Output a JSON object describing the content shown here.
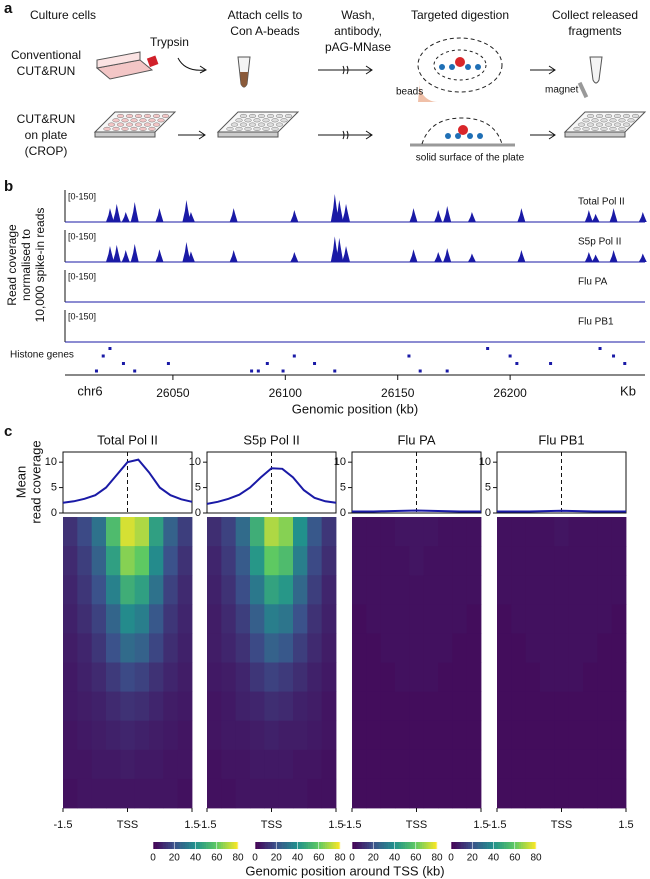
{
  "panel_a": {
    "label": "a",
    "steps": [
      [
        "Culture cells"
      ],
      [
        "Attach cells to",
        "Con A-beads"
      ],
      [
        "Wash,",
        "antibody,",
        "pAG-MNase"
      ],
      [
        "Targeted digestion"
      ],
      [
        "Collect released",
        "fragments"
      ]
    ],
    "rows": [
      [
        "Conventional",
        "CUT&RUN"
      ],
      [
        "CUT&RUN",
        "on plate",
        "(CROP)"
      ]
    ],
    "annotations": {
      "trypsin": "Trypsin",
      "beads": "beads",
      "magnet": "magnet",
      "surface": "solid surface of the plate"
    }
  },
  "panel_b": {
    "label": "b",
    "y_label": [
      "Read coverage",
      "normalised to",
      "10,000 spike-in reads"
    ],
    "xlim": [
      26002,
      26260
    ],
    "ylim": [
      0,
      150
    ],
    "track_range": "[0-150]",
    "tracks": [
      {
        "name": "Total Pol II",
        "color": "#1a1aa6",
        "peaks": [
          [
            26022,
            65
          ],
          [
            26025,
            85
          ],
          [
            26029,
            47
          ],
          [
            26033,
            94
          ],
          [
            26044,
            65
          ],
          [
            26056,
            103
          ],
          [
            26058,
            47
          ],
          [
            26077,
            65
          ],
          [
            26104,
            56
          ],
          [
            26122,
            131
          ],
          [
            26124,
            103
          ],
          [
            26127,
            85
          ],
          [
            26157,
            65
          ],
          [
            26168,
            56
          ],
          [
            26172,
            75
          ],
          [
            26183,
            47
          ],
          [
            26205,
            65
          ],
          [
            26235,
            56
          ],
          [
            26238,
            38
          ],
          [
            26246,
            65
          ],
          [
            26259,
            47
          ]
        ]
      },
      {
        "name": "S5p Pol II",
        "color": "#1a1aa6",
        "peaks": [
          [
            26022,
            75
          ],
          [
            26025,
            80
          ],
          [
            26029,
            56
          ],
          [
            26033,
            85
          ],
          [
            26044,
            60
          ],
          [
            26056,
            94
          ],
          [
            26058,
            50
          ],
          [
            26077,
            56
          ],
          [
            26104,
            47
          ],
          [
            26122,
            120
          ],
          [
            26124,
            113
          ],
          [
            26127,
            75
          ],
          [
            26157,
            60
          ],
          [
            26168,
            47
          ],
          [
            26172,
            65
          ],
          [
            26183,
            40
          ],
          [
            26205,
            56
          ],
          [
            26235,
            47
          ],
          [
            26238,
            35
          ],
          [
            26246,
            56
          ],
          [
            26259,
            40
          ]
        ]
      },
      {
        "name": "Flu PA",
        "color": "#1a1aa6",
        "peaks": []
      },
      {
        "name": "Flu PB1",
        "color": "#1a1aa6",
        "peaks": []
      }
    ],
    "histone_label": "Histone genes",
    "histone_genes": [
      [
        26016,
        3
      ],
      [
        26019,
        1
      ],
      [
        26022,
        0
      ],
      [
        26028,
        2
      ],
      [
        26033,
        3
      ],
      [
        26048,
        2
      ],
      [
        26085,
        3
      ],
      [
        26088,
        3
      ],
      [
        26092,
        2
      ],
      [
        26099,
        3
      ],
      [
        26104,
        1
      ],
      [
        26113,
        2
      ],
      [
        26122,
        3
      ],
      [
        26155,
        1
      ],
      [
        26160,
        3
      ],
      [
        26172,
        3
      ],
      [
        26190,
        0
      ],
      [
        26200,
        1
      ],
      [
        26203,
        2
      ],
      [
        26218,
        2
      ],
      [
        26240,
        0
      ],
      [
        26246,
        1
      ],
      [
        26251,
        2
      ]
    ],
    "chromosome": "chr6",
    "unit": "Kb",
    "xticks": [
      26050,
      26100,
      26150,
      26200
    ],
    "x_label": "Genomic position (kb)"
  },
  "panel_c": {
    "label": "c",
    "y_label": [
      "Mean",
      "read coverage"
    ],
    "x_label": "Genomic position around TSS (kb)",
    "xlim": [
      -1.5,
      1.5
    ],
    "xticks": [
      -1.5,
      {
        "value": 0,
        "label": "TSS"
      },
      1.5
    ],
    "ylim": [
      0,
      12
    ],
    "yticks": [
      0,
      5,
      10
    ],
    "profile_x": [
      -1.5,
      -1.25,
      -1,
      -0.75,
      -0.5,
      -0.25,
      0,
      0.25,
      0.5,
      0.75,
      1,
      1.25,
      1.5
    ],
    "colormap": "viridis",
    "clim": [
      0,
      80
    ],
    "cticks": [
      0,
      20,
      40,
      60,
      80
    ],
    "line_color": "#1a1aa6",
    "panels": [
      {
        "title": "Total Pol II",
        "profile": [
          2,
          2.3,
          2.8,
          3.5,
          5,
          7.5,
          10,
          10.5,
          8,
          5,
          3.5,
          2.7,
          2.2
        ],
        "heatmap": [
          [
            12,
            18,
            30,
            55,
            75,
            70,
            45,
            25,
            15
          ],
          [
            10,
            15,
            25,
            45,
            65,
            60,
            38,
            20,
            12
          ],
          [
            9,
            13,
            20,
            35,
            50,
            45,
            30,
            16,
            10
          ],
          [
            8,
            11,
            16,
            26,
            38,
            34,
            22,
            13,
            9
          ],
          [
            7,
            9,
            13,
            20,
            28,
            25,
            17,
            11,
            8
          ],
          [
            6,
            8,
            10,
            14,
            18,
            16,
            12,
            9,
            7
          ],
          [
            6,
            7,
            8,
            10,
            12,
            11,
            9,
            7,
            6
          ],
          [
            5,
            6,
            7,
            8,
            9,
            8,
            7,
            6,
            5
          ],
          [
            5,
            5,
            6,
            6,
            7,
            6,
            6,
            5,
            5
          ],
          [
            4,
            5,
            5,
            5,
            5,
            5,
            5,
            5,
            4
          ]
        ]
      },
      {
        "title": "S5p Pol II",
        "profile": [
          1.8,
          2.2,
          2.8,
          3.6,
          5,
          7,
          8.8,
          8.7,
          7,
          4.5,
          3,
          2.3,
          2
        ],
        "heatmap": [
          [
            11,
            16,
            28,
            50,
            70,
            65,
            40,
            22,
            13
          ],
          [
            9,
            14,
            23,
            42,
            60,
            55,
            34,
            18,
            11
          ],
          [
            8,
            12,
            19,
            32,
            46,
            42,
            27,
            15,
            9
          ],
          [
            7,
            10,
            15,
            24,
            34,
            31,
            20,
            12,
            8
          ],
          [
            7,
            9,
            12,
            18,
            25,
            22,
            15,
            10,
            7
          ],
          [
            6,
            7,
            9,
            13,
            16,
            14,
            11,
            8,
            6
          ],
          [
            5,
            6,
            8,
            9,
            11,
            10,
            8,
            7,
            5
          ],
          [
            5,
            6,
            6,
            7,
            8,
            7,
            7,
            6,
            5
          ],
          [
            4,
            5,
            5,
            6,
            6,
            6,
            5,
            5,
            4
          ],
          [
            4,
            4,
            5,
            5,
            5,
            5,
            5,
            4,
            4
          ]
        ]
      },
      {
        "title": "Flu PA",
        "profile": [
          0.3,
          0.3,
          0.3,
          0.35,
          0.4,
          0.45,
          0.5,
          0.45,
          0.4,
          0.35,
          0.3,
          0.3,
          0.3
        ],
        "heatmap": [
          [
            4,
            4,
            4,
            5,
            5,
            5,
            4,
            4,
            4
          ],
          [
            4,
            4,
            4,
            4,
            5,
            4,
            4,
            4,
            4
          ],
          [
            4,
            4,
            4,
            4,
            4,
            4,
            4,
            4,
            4
          ],
          [
            3,
            4,
            4,
            4,
            4,
            4,
            4,
            4,
            3
          ],
          [
            3,
            3,
            4,
            4,
            4,
            4,
            4,
            3,
            3
          ],
          [
            3,
            3,
            3,
            4,
            4,
            4,
            3,
            3,
            3
          ],
          [
            3,
            3,
            3,
            3,
            3,
            3,
            3,
            3,
            3
          ],
          [
            3,
            3,
            3,
            3,
            3,
            3,
            3,
            3,
            3
          ],
          [
            3,
            3,
            3,
            3,
            3,
            3,
            3,
            3,
            3
          ],
          [
            3,
            3,
            3,
            3,
            3,
            3,
            3,
            3,
            3
          ]
        ]
      },
      {
        "title": "Flu PB1",
        "profile": [
          0.3,
          0.3,
          0.3,
          0.3,
          0.35,
          0.4,
          0.45,
          0.4,
          0.35,
          0.3,
          0.3,
          0.3,
          0.3
        ],
        "heatmap": [
          [
            4,
            4,
            4,
            4,
            5,
            4,
            4,
            4,
            4
          ],
          [
            4,
            4,
            4,
            4,
            4,
            4,
            4,
            4,
            4
          ],
          [
            4,
            4,
            4,
            4,
            4,
            4,
            4,
            4,
            4
          ],
          [
            3,
            4,
            4,
            4,
            4,
            4,
            4,
            4,
            3
          ],
          [
            3,
            3,
            4,
            4,
            4,
            4,
            4,
            3,
            3
          ],
          [
            3,
            3,
            3,
            4,
            4,
            4,
            3,
            3,
            3
          ],
          [
            3,
            3,
            3,
            3,
            3,
            3,
            3,
            3,
            3
          ],
          [
            3,
            3,
            3,
            3,
            3,
            3,
            3,
            3,
            3
          ],
          [
            3,
            3,
            3,
            3,
            3,
            3,
            3,
            3,
            3
          ],
          [
            3,
            3,
            3,
            3,
            3,
            3,
            3,
            3,
            3
          ]
        ]
      }
    ]
  }
}
